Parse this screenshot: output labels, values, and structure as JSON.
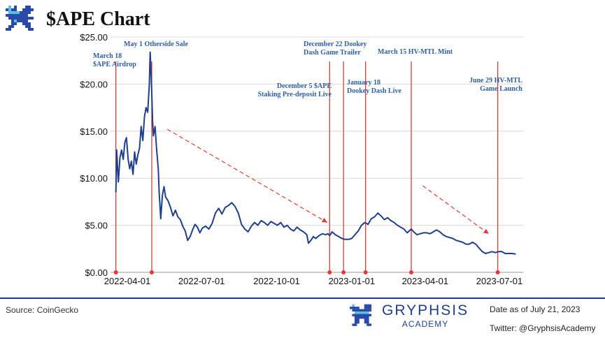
{
  "header": {
    "title": "$APE Chart"
  },
  "footer": {
    "source": "Source: CoinGecko",
    "brand_name": "GRYPHSIS",
    "brand_sub": "ACADEMY",
    "date_note": "Date as of July 21, 2023",
    "twitter": "Twitter: @GryphsisAcademy"
  },
  "colors": {
    "line": "#1f3f8c",
    "event": "#e53935",
    "annotation": "#2f5f9e",
    "grid": "#d9d9d9"
  },
  "chart_data": {
    "type": "line",
    "title": "$APE Chart",
    "xlabel": "",
    "ylabel": "",
    "ylim": [
      0,
      25
    ],
    "yticks": [
      "$0.00",
      "$5.00",
      "$10.00",
      "$15.00",
      "$20.00",
      "$25.00"
    ],
    "xticks": [
      "2022-04-01",
      "2022-07-01",
      "2022-10-01",
      "2023-01-01",
      "2023-04-01",
      "2023-07-01"
    ],
    "grid": true,
    "series": [
      {
        "values": [
          [
            "2022-03-18",
            8.5
          ],
          [
            "2022-03-19",
            13.0
          ],
          [
            "2022-03-21",
            9.6
          ],
          [
            "2022-03-23",
            12.2
          ],
          [
            "2022-03-25",
            13.0
          ],
          [
            "2022-03-27",
            12.0
          ],
          [
            "2022-03-29",
            13.8
          ],
          [
            "2022-03-31",
            14.3
          ],
          [
            "2022-04-02",
            12.0
          ],
          [
            "2022-04-04",
            11.0
          ],
          [
            "2022-04-06",
            11.8
          ],
          [
            "2022-04-08",
            10.4
          ],
          [
            "2022-04-10",
            12.8
          ],
          [
            "2022-04-12",
            11.5
          ],
          [
            "2022-04-14",
            12.5
          ],
          [
            "2022-04-16",
            13.2
          ],
          [
            "2022-04-18",
            15.5
          ],
          [
            "2022-04-20",
            14.0
          ],
          [
            "2022-04-22",
            16.5
          ],
          [
            "2022-04-24",
            17.5
          ],
          [
            "2022-04-26",
            17.0
          ],
          [
            "2022-04-28",
            20.0
          ],
          [
            "2022-04-29",
            23.4
          ],
          [
            "2022-04-30",
            21.5
          ],
          [
            "2022-05-01",
            19.0
          ],
          [
            "2022-05-02",
            16.0
          ],
          [
            "2022-05-03",
            14.5
          ],
          [
            "2022-05-05",
            15.5
          ],
          [
            "2022-05-07",
            13.0
          ],
          [
            "2022-05-09",
            11.0
          ],
          [
            "2022-05-10",
            8.6
          ],
          [
            "2022-05-12",
            5.7
          ],
          [
            "2022-05-14",
            8.2
          ],
          [
            "2022-05-16",
            9.1
          ],
          [
            "2022-05-18",
            8.0
          ],
          [
            "2022-05-21",
            7.6
          ],
          [
            "2022-05-24",
            6.9
          ],
          [
            "2022-05-27",
            6.0
          ],
          [
            "2022-05-30",
            6.6
          ],
          [
            "2022-06-02",
            5.9
          ],
          [
            "2022-06-05",
            5.6
          ],
          [
            "2022-06-08",
            4.9
          ],
          [
            "2022-06-11",
            4.4
          ],
          [
            "2022-06-14",
            3.4
          ],
          [
            "2022-06-17",
            3.8
          ],
          [
            "2022-06-20",
            4.5
          ],
          [
            "2022-06-23",
            5.1
          ],
          [
            "2022-06-26",
            4.8
          ],
          [
            "2022-06-29",
            4.2
          ],
          [
            "2022-07-02",
            4.7
          ],
          [
            "2022-07-06",
            4.9
          ],
          [
            "2022-07-10",
            4.6
          ],
          [
            "2022-07-14",
            5.2
          ],
          [
            "2022-07-18",
            6.3
          ],
          [
            "2022-07-22",
            6.8
          ],
          [
            "2022-07-26",
            6.2
          ],
          [
            "2022-07-30",
            6.9
          ],
          [
            "2022-08-03",
            7.1
          ],
          [
            "2022-08-07",
            7.4
          ],
          [
            "2022-08-11",
            7.0
          ],
          [
            "2022-08-15",
            6.3
          ],
          [
            "2022-08-19",
            5.1
          ],
          [
            "2022-08-23",
            4.6
          ],
          [
            "2022-08-27",
            4.3
          ],
          [
            "2022-08-31",
            4.9
          ],
          [
            "2022-09-04",
            5.3
          ],
          [
            "2022-09-08",
            5.0
          ],
          [
            "2022-09-12",
            5.5
          ],
          [
            "2022-09-16",
            5.3
          ],
          [
            "2022-09-20",
            5.0
          ],
          [
            "2022-09-24",
            5.4
          ],
          [
            "2022-09-28",
            5.2
          ],
          [
            "2022-10-02",
            5.0
          ],
          [
            "2022-10-06",
            5.3
          ],
          [
            "2022-10-10",
            4.8
          ],
          [
            "2022-10-14",
            5.0
          ],
          [
            "2022-10-18",
            4.6
          ],
          [
            "2022-10-22",
            4.4
          ],
          [
            "2022-10-26",
            4.8
          ],
          [
            "2022-10-30",
            4.5
          ],
          [
            "2022-11-03",
            4.3
          ],
          [
            "2022-11-07",
            4.0
          ],
          [
            "2022-11-09",
            3.1
          ],
          [
            "2022-11-12",
            3.4
          ],
          [
            "2022-11-15",
            3.8
          ],
          [
            "2022-11-18",
            3.6
          ],
          [
            "2022-11-22",
            3.9
          ],
          [
            "2022-11-26",
            4.1
          ],
          [
            "2022-11-30",
            4.0
          ],
          [
            "2022-12-03",
            4.1
          ],
          [
            "2022-12-05",
            3.9
          ],
          [
            "2022-12-08",
            4.3
          ],
          [
            "2022-12-12",
            4.0
          ],
          [
            "2022-12-16",
            3.8
          ],
          [
            "2022-12-20",
            3.6
          ],
          [
            "2022-12-24",
            3.5
          ],
          [
            "2022-12-28",
            3.5
          ],
          [
            "2023-01-01",
            3.6
          ],
          [
            "2023-01-05",
            4.0
          ],
          [
            "2023-01-09",
            4.4
          ],
          [
            "2023-01-13",
            5.0
          ],
          [
            "2023-01-17",
            5.3
          ],
          [
            "2023-01-21",
            5.1
          ],
          [
            "2023-01-25",
            5.7
          ],
          [
            "2023-01-29",
            5.9
          ],
          [
            "2023-02-02",
            6.3
          ],
          [
            "2023-02-06",
            6.0
          ],
          [
            "2023-02-10",
            5.6
          ],
          [
            "2023-02-14",
            5.8
          ],
          [
            "2023-02-18",
            5.5
          ],
          [
            "2023-02-22",
            5.3
          ],
          [
            "2023-02-26",
            5.0
          ],
          [
            "2023-03-02",
            4.8
          ],
          [
            "2023-03-06",
            4.6
          ],
          [
            "2023-03-10",
            4.2
          ],
          [
            "2023-03-15",
            4.6
          ],
          [
            "2023-03-18",
            4.3
          ],
          [
            "2023-03-22",
            4.0
          ],
          [
            "2023-03-26",
            4.1
          ],
          [
            "2023-03-30",
            4.2
          ],
          [
            "2023-04-03",
            4.2
          ],
          [
            "2023-04-07",
            4.1
          ],
          [
            "2023-04-11",
            4.3
          ],
          [
            "2023-04-15",
            4.5
          ],
          [
            "2023-04-19",
            4.3
          ],
          [
            "2023-04-23",
            4.0
          ],
          [
            "2023-04-27",
            3.8
          ],
          [
            "2023-05-01",
            3.7
          ],
          [
            "2023-05-05",
            3.6
          ],
          [
            "2023-05-09",
            3.4
          ],
          [
            "2023-05-13",
            3.3
          ],
          [
            "2023-05-17",
            3.2
          ],
          [
            "2023-05-21",
            3.0
          ],
          [
            "2023-05-25",
            3.0
          ],
          [
            "2023-05-29",
            3.2
          ],
          [
            "2023-06-02",
            3.0
          ],
          [
            "2023-06-06",
            2.6
          ],
          [
            "2023-06-10",
            2.2
          ],
          [
            "2023-06-14",
            2.0
          ],
          [
            "2023-06-18",
            2.1
          ],
          [
            "2023-06-22",
            2.2
          ],
          [
            "2023-06-26",
            2.1
          ],
          [
            "2023-06-30",
            2.2
          ],
          [
            "2023-07-04",
            2.2
          ],
          [
            "2023-07-08",
            2.0
          ],
          [
            "2023-07-12",
            2.0
          ],
          [
            "2023-07-16",
            2.0
          ],
          [
            "2023-07-21",
            1.95
          ]
        ]
      }
    ],
    "events": [
      {
        "date": "2022-03-18",
        "lines": [
          "March 18",
          "$APE Airdrop"
        ]
      },
      {
        "date": "2022-05-01",
        "lines": [
          "May 1 Otherside Sale"
        ]
      },
      {
        "date": "2022-12-05",
        "lines": [
          "December 5 $APE",
          "Staking Pre-deposit Live"
        ]
      },
      {
        "date": "2022-12-22",
        "lines": [
          "December 22 Dookey",
          "Dash Game Trailer"
        ]
      },
      {
        "date": "2023-01-18",
        "lines": [
          "January 18",
          "Dookey Dash Live"
        ]
      },
      {
        "date": "2023-03-15",
        "lines": [
          "March 15 HV-MTL Mint"
        ]
      },
      {
        "date": "2023-06-29",
        "lines": [
          "June 29 HV-MTL",
          "Game Launch"
        ]
      }
    ],
    "trend_arrows": [
      {
        "from": [
          "2022-05-20",
          15.2
        ],
        "to": [
          "2022-12-02",
          5.3
        ]
      },
      {
        "from": [
          "2023-03-29",
          9.2
        ],
        "to": [
          "2023-06-18",
          4.1
        ]
      }
    ]
  }
}
